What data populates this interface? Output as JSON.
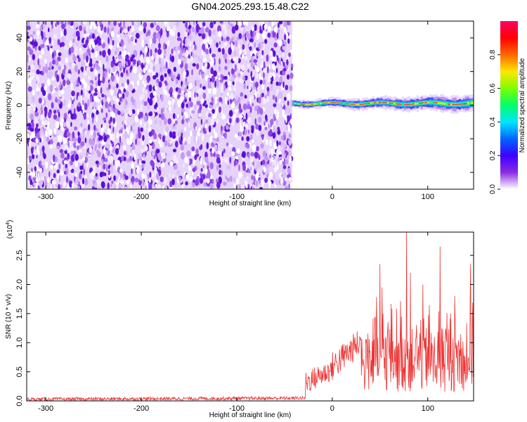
{
  "title": "GN04.2025.293.15.48.C22",
  "chart_data": [
    {
      "type": "heatmap",
      "name": "spectrogram",
      "xlabel": "Height of straight line (km)",
      "ylabel": "Frequency (Hz)",
      "xlim": [
        -320,
        148
      ],
      "ylim": [
        -50,
        50
      ],
      "xticks": [
        -300,
        -200,
        -100,
        0,
        100
      ],
      "yticks": [
        -40,
        -20,
        0,
        20,
        40
      ],
      "noise_region_x": [
        -320,
        -42
      ],
      "signal_band_x": [
        -42,
        148
      ],
      "signal_band_center_hz": 1,
      "colorbar": {
        "label": "Normalized spectral amplitude",
        "range": [
          0,
          1
        ],
        "ticks": [
          "0.0",
          "0.2",
          "0.4",
          "0.6",
          "0.8"
        ],
        "colors": [
          "#ffffff",
          "#8a2be2",
          "#3d00ff",
          "#0066ff",
          "#00e5ff",
          "#00ff66",
          "#7dff00",
          "#ffe600",
          "#ff6600",
          "#ff0000",
          "#ff0066"
        ]
      }
    },
    {
      "type": "line",
      "name": "snr",
      "xlabel": "Height of straight line (km)",
      "ylabel": "SNR (10 * v/v)",
      "y_multiplier": "(x10",
      "y_multiplier_exp": "4",
      "xlim": [
        -320,
        148
      ],
      "ylim": [
        0,
        2.9
      ],
      "xticks": [
        -300,
        -200,
        -100,
        0,
        100
      ],
      "yticks": [
        "0.0",
        "0.5",
        "1.0",
        "1.5",
        "2.0",
        "2.5"
      ],
      "color": "#ee3333",
      "segments": [
        {
          "x": [
            -320,
            -28
          ],
          "level": 0.04,
          "jitter": 0.03
        },
        {
          "x": [
            -28,
            0
          ],
          "level": 0.45,
          "jitter": 0.2
        },
        {
          "x": [
            0,
            30
          ],
          "level": 0.85,
          "jitter": 0.25
        },
        {
          "x": [
            30,
            148
          ],
          "level": 1.0,
          "jitter": 1.0
        }
      ],
      "peaks": [
        {
          "x": 50,
          "y": 2.35
        },
        {
          "x": 52,
          "y": 1.95
        },
        {
          "x": 78,
          "y": 2.9
        },
        {
          "x": 82,
          "y": 2.2
        },
        {
          "x": 95,
          "y": 2.0
        },
        {
          "x": 113,
          "y": 2.65
        },
        {
          "x": 145,
          "y": 2.35
        },
        {
          "x": 128,
          "y": 1.8
        }
      ]
    }
  ]
}
